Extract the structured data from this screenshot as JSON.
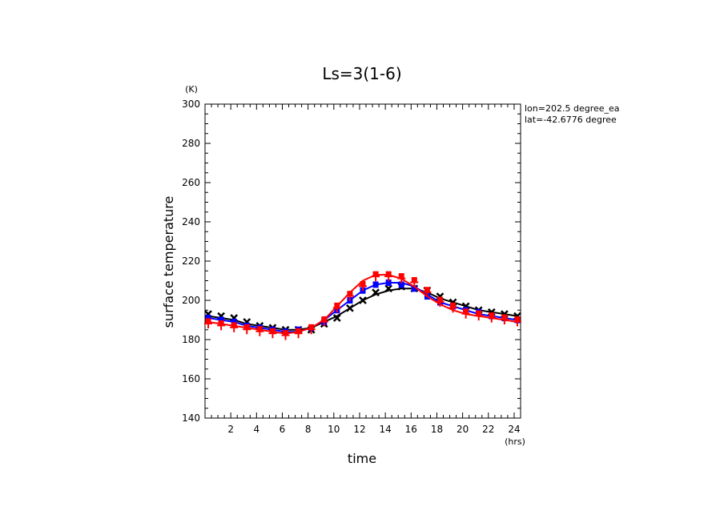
{
  "chart_data": {
    "type": "line",
    "title": "Ls=3(1-6)",
    "xlabel": "time",
    "ylabel": "surface temperature",
    "x_unit": "(hrs)",
    "y_unit": "(K)",
    "xlim": [
      0,
      24.5
    ],
    "ylim": [
      140,
      300
    ],
    "xticks": [
      2,
      4,
      6,
      8,
      10,
      12,
      14,
      16,
      18,
      20,
      22,
      24
    ],
    "yticks": [
      140,
      160,
      180,
      200,
      220,
      240,
      260,
      280,
      300
    ],
    "grid": false,
    "annotations": [
      "lon=202.5 degree_ea",
      "lat=-42.6776 degree"
    ],
    "x": [
      0.25,
      1.25,
      2.25,
      3.25,
      4.25,
      5.25,
      6.25,
      7.25,
      8.25,
      9.25,
      10.25,
      11.25,
      12.25,
      13.25,
      14.25,
      15.25,
      16.25,
      17.25,
      18.25,
      19.25,
      20.25,
      21.25,
      22.25,
      23.25,
      24.25
    ],
    "series": [
      {
        "color": "#000000",
        "marker": "x",
        "values": [
          192,
          191,
          190,
          188,
          187,
          186,
          185,
          185,
          186,
          189,
          192,
          196,
          200,
          203,
          205,
          206,
          206,
          204,
          201,
          199,
          197,
          195,
          194,
          193,
          192
        ],
        "markers": [
          193,
          192,
          191,
          189,
          187,
          186,
          185,
          185,
          185,
          188,
          191,
          196,
          200,
          204,
          206,
          207,
          206,
          205,
          202,
          199,
          197,
          195,
          194,
          193,
          192
        ]
      },
      {
        "color": "#0000ff",
        "marker": "square",
        "values": [
          191,
          190,
          189,
          187,
          186,
          185,
          184,
          184,
          186,
          190,
          195,
          200,
          205,
          208,
          209,
          209,
          207,
          203,
          199,
          197,
          195,
          193,
          192,
          191,
          190
        ],
        "markers": [
          191,
          190,
          189,
          187,
          186,
          185,
          184,
          185,
          186,
          189,
          195,
          200,
          205,
          208,
          209,
          208,
          206,
          202,
          199,
          197,
          195,
          194,
          192,
          191,
          190
        ]
      },
      {
        "color": "#ff0000",
        "marker": "square-plus",
        "values": [
          189,
          188,
          187,
          186,
          185,
          184,
          183,
          184,
          186,
          190,
          197,
          204,
          210,
          213,
          213,
          211,
          207,
          202,
          198,
          195,
          193,
          192,
          191,
          190,
          189
        ],
        "markers": [
          189,
          188,
          187,
          186,
          185,
          184,
          183,
          184,
          186,
          190,
          197,
          203,
          208,
          213,
          213,
          212,
          210,
          205,
          200,
          197,
          194,
          193,
          192,
          191,
          190
        ]
      }
    ]
  }
}
